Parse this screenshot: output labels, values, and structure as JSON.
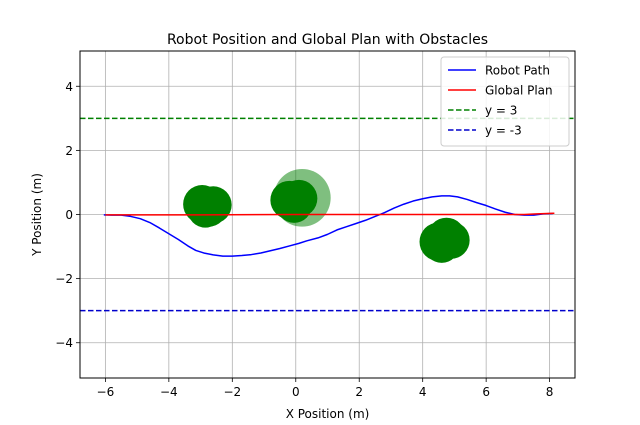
{
  "chart_data": {
    "type": "line",
    "title": "Robot Position and Global Plan with Obstacles",
    "xlabel": "X Position (m)",
    "ylabel": "Y Position (m)",
    "xlim": [
      -6.8,
      8.8
    ],
    "ylim": [
      -5.1,
      5.1
    ],
    "xticks": [
      -6,
      -4,
      -2,
      0,
      2,
      4,
      6,
      8
    ],
    "yticks": [
      -4,
      -2,
      0,
      2,
      4
    ],
    "grid": true,
    "legend_position": "top-right",
    "series": [
      {
        "name": "Robot Path",
        "kind": "line",
        "color": "#0000ff",
        "points": [
          [
            -6.05,
            -0.01
          ],
          [
            -5.8,
            -0.02
          ],
          [
            -5.5,
            -0.02
          ],
          [
            -5.2,
            -0.06
          ],
          [
            -4.9,
            -0.13
          ],
          [
            -4.6,
            -0.25
          ],
          [
            -4.3,
            -0.42
          ],
          [
            -4.0,
            -0.6
          ],
          [
            -3.7,
            -0.78
          ],
          [
            -3.4,
            -0.98
          ],
          [
            -3.15,
            -1.12
          ],
          [
            -2.9,
            -1.2
          ],
          [
            -2.6,
            -1.26
          ],
          [
            -2.3,
            -1.3
          ],
          [
            -2.0,
            -1.3
          ],
          [
            -1.7,
            -1.28
          ],
          [
            -1.4,
            -1.25
          ],
          [
            -1.1,
            -1.2
          ],
          [
            -0.8,
            -1.13
          ],
          [
            -0.5,
            -1.06
          ],
          [
            -0.2,
            -0.98
          ],
          [
            0.1,
            -0.9
          ],
          [
            0.35,
            -0.82
          ],
          [
            0.7,
            -0.73
          ],
          [
            1.0,
            -0.62
          ],
          [
            1.3,
            -0.48
          ],
          [
            1.6,
            -0.38
          ],
          [
            1.9,
            -0.28
          ],
          [
            2.2,
            -0.18
          ],
          [
            2.5,
            -0.06
          ],
          [
            2.8,
            0.06
          ],
          [
            3.1,
            0.2
          ],
          [
            3.4,
            0.32
          ],
          [
            3.7,
            0.42
          ],
          [
            4.0,
            0.49
          ],
          [
            4.3,
            0.55
          ],
          [
            4.6,
            0.58
          ],
          [
            4.85,
            0.58
          ],
          [
            5.1,
            0.55
          ],
          [
            5.4,
            0.47
          ],
          [
            5.7,
            0.37
          ],
          [
            6.0,
            0.28
          ],
          [
            6.3,
            0.17
          ],
          [
            6.6,
            0.07
          ],
          [
            6.9,
            0.0
          ],
          [
            7.2,
            -0.02
          ],
          [
            7.5,
            -0.02
          ],
          [
            7.8,
            0.02
          ],
          [
            8.1,
            0.03
          ]
        ]
      },
      {
        "name": "Global Plan",
        "kind": "line",
        "color": "#ff0000",
        "points": [
          [
            -6.0,
            -0.01
          ],
          [
            -3.0,
            -0.01
          ],
          [
            0.0,
            0.0
          ],
          [
            3.0,
            0.0
          ],
          [
            6.0,
            0.0
          ],
          [
            7.2,
            0.0
          ],
          [
            7.6,
            0.02
          ],
          [
            8.15,
            0.04
          ]
        ]
      },
      {
        "name": "y = 3",
        "kind": "hline",
        "color": "#008000",
        "dashed": true,
        "value": 3
      },
      {
        "name": "y = -3",
        "kind": "hline",
        "color": "#0000cc",
        "dashed": true,
        "value": -3
      }
    ],
    "obstacles": [
      {
        "x": -2.95,
        "y": 0.32,
        "r": 0.6,
        "color": "#008000",
        "opacity": 1.0
      },
      {
        "x": -2.75,
        "y": 0.22,
        "r": 0.6,
        "color": "#008000",
        "opacity": 1.0
      },
      {
        "x": -2.6,
        "y": 0.3,
        "r": 0.58,
        "color": "#008000",
        "opacity": 1.0
      },
      {
        "x": -2.85,
        "y": 0.15,
        "r": 0.56,
        "color": "#008000",
        "opacity": 1.0
      },
      {
        "x": 0.2,
        "y": 0.52,
        "r": 0.9,
        "color": "#008000",
        "opacity": 0.5
      },
      {
        "x": -0.2,
        "y": 0.45,
        "r": 0.6,
        "color": "#008000",
        "opacity": 1.0
      },
      {
        "x": 0.1,
        "y": 0.5,
        "r": 0.58,
        "color": "#008000",
        "opacity": 1.0
      },
      {
        "x": -0.05,
        "y": 0.3,
        "r": 0.56,
        "color": "#008000",
        "opacity": 1.0
      },
      {
        "x": 4.5,
        "y": -0.85,
        "r": 0.6,
        "color": "#008000",
        "opacity": 1.0
      },
      {
        "x": 4.75,
        "y": -0.7,
        "r": 0.6,
        "color": "#008000",
        "opacity": 1.0
      },
      {
        "x": 4.9,
        "y": -0.8,
        "r": 0.58,
        "color": "#008000",
        "opacity": 1.0
      },
      {
        "x": 4.6,
        "y": -0.95,
        "r": 0.56,
        "color": "#008000",
        "opacity": 1.0
      }
    ]
  }
}
